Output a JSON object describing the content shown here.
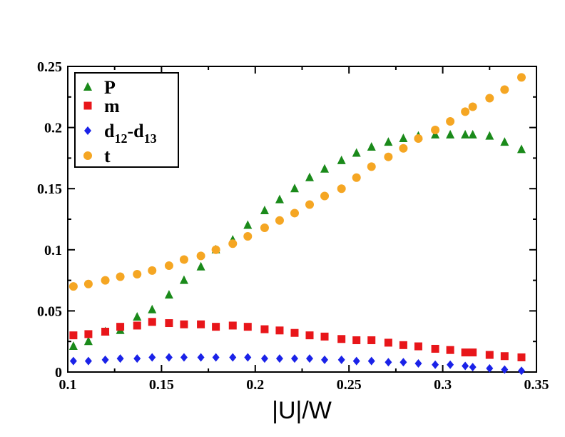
{
  "chart_data": {
    "type": "scatter",
    "title": "",
    "xlabel": "|U|/W",
    "ylabel": "",
    "xlim": [
      0.1,
      0.35
    ],
    "ylim": [
      0,
      0.25
    ],
    "xticks": [
      "0.1",
      "0.15",
      "0.2",
      "0.25",
      "0.3",
      "0.35"
    ],
    "yticks": [
      "0",
      "0.05",
      "0.1",
      "0.15",
      "0.2",
      "0.25"
    ],
    "grid": false,
    "legend_position": "top-left",
    "series": [
      {
        "name": "P",
        "label_main": "P",
        "marker": "triangle",
        "color": "#1a8a1a",
        "x": [
          0.103,
          0.111,
          0.12,
          0.128,
          0.137,
          0.145,
          0.154,
          0.162,
          0.171,
          0.179,
          0.188,
          0.196,
          0.205,
          0.213,
          0.221,
          0.229,
          0.237,
          0.246,
          0.254,
          0.262,
          0.271,
          0.279,
          0.287,
          0.296,
          0.304,
          0.312,
          0.316,
          0.325,
          0.333,
          0.342
        ],
        "y": [
          0.021,
          0.025,
          0.033,
          0.034,
          0.045,
          0.051,
          0.063,
          0.075,
          0.086,
          0.1,
          0.108,
          0.12,
          0.132,
          0.141,
          0.15,
          0.159,
          0.166,
          0.173,
          0.179,
          0.184,
          0.188,
          0.191,
          0.193,
          0.194,
          0.194,
          0.194,
          0.194,
          0.193,
          0.188,
          0.182
        ]
      },
      {
        "name": "m",
        "label_main": "m",
        "marker": "square",
        "color": "#e8161a",
        "x": [
          0.103,
          0.111,
          0.12,
          0.128,
          0.137,
          0.145,
          0.154,
          0.162,
          0.171,
          0.179,
          0.188,
          0.196,
          0.205,
          0.213,
          0.221,
          0.229,
          0.237,
          0.246,
          0.254,
          0.262,
          0.271,
          0.279,
          0.287,
          0.296,
          0.304,
          0.312,
          0.316,
          0.325,
          0.333,
          0.342
        ],
        "y": [
          0.03,
          0.031,
          0.033,
          0.037,
          0.038,
          0.041,
          0.04,
          0.039,
          0.039,
          0.037,
          0.038,
          0.037,
          0.035,
          0.034,
          0.032,
          0.03,
          0.029,
          0.027,
          0.026,
          0.026,
          0.024,
          0.022,
          0.021,
          0.019,
          0.018,
          0.016,
          0.016,
          0.014,
          0.013,
          0.012
        ]
      },
      {
        "name": "d12-d13",
        "label_main": "d",
        "label_sub1": "12",
        "label_mid": "-d",
        "label_sub2": "13",
        "marker": "diamond",
        "color": "#1a22e8",
        "x": [
          0.103,
          0.111,
          0.12,
          0.128,
          0.137,
          0.145,
          0.154,
          0.162,
          0.171,
          0.179,
          0.188,
          0.196,
          0.205,
          0.213,
          0.221,
          0.229,
          0.237,
          0.246,
          0.254,
          0.262,
          0.271,
          0.279,
          0.287,
          0.296,
          0.304,
          0.312,
          0.316,
          0.325,
          0.333,
          0.342
        ],
        "y": [
          0.009,
          0.009,
          0.01,
          0.011,
          0.011,
          0.012,
          0.012,
          0.012,
          0.012,
          0.012,
          0.012,
          0.012,
          0.011,
          0.011,
          0.011,
          0.011,
          0.01,
          0.01,
          0.009,
          0.009,
          0.008,
          0.008,
          0.007,
          0.006,
          0.006,
          0.005,
          0.004,
          0.003,
          0.002,
          0.001
        ]
      },
      {
        "name": "t",
        "label_main": "t",
        "marker": "circle",
        "color": "#f5a623",
        "x": [
          0.103,
          0.111,
          0.12,
          0.128,
          0.137,
          0.145,
          0.154,
          0.162,
          0.171,
          0.179,
          0.188,
          0.196,
          0.205,
          0.213,
          0.221,
          0.229,
          0.237,
          0.246,
          0.254,
          0.262,
          0.271,
          0.279,
          0.287,
          0.296,
          0.304,
          0.312,
          0.316,
          0.325,
          0.333,
          0.342
        ],
        "y": [
          0.07,
          0.072,
          0.075,
          0.078,
          0.08,
          0.083,
          0.087,
          0.092,
          0.095,
          0.1,
          0.105,
          0.111,
          0.118,
          0.124,
          0.13,
          0.137,
          0.144,
          0.15,
          0.159,
          0.168,
          0.176,
          0.183,
          0.191,
          0.198,
          0.205,
          0.213,
          0.217,
          0.224,
          0.231,
          0.241
        ]
      }
    ]
  }
}
